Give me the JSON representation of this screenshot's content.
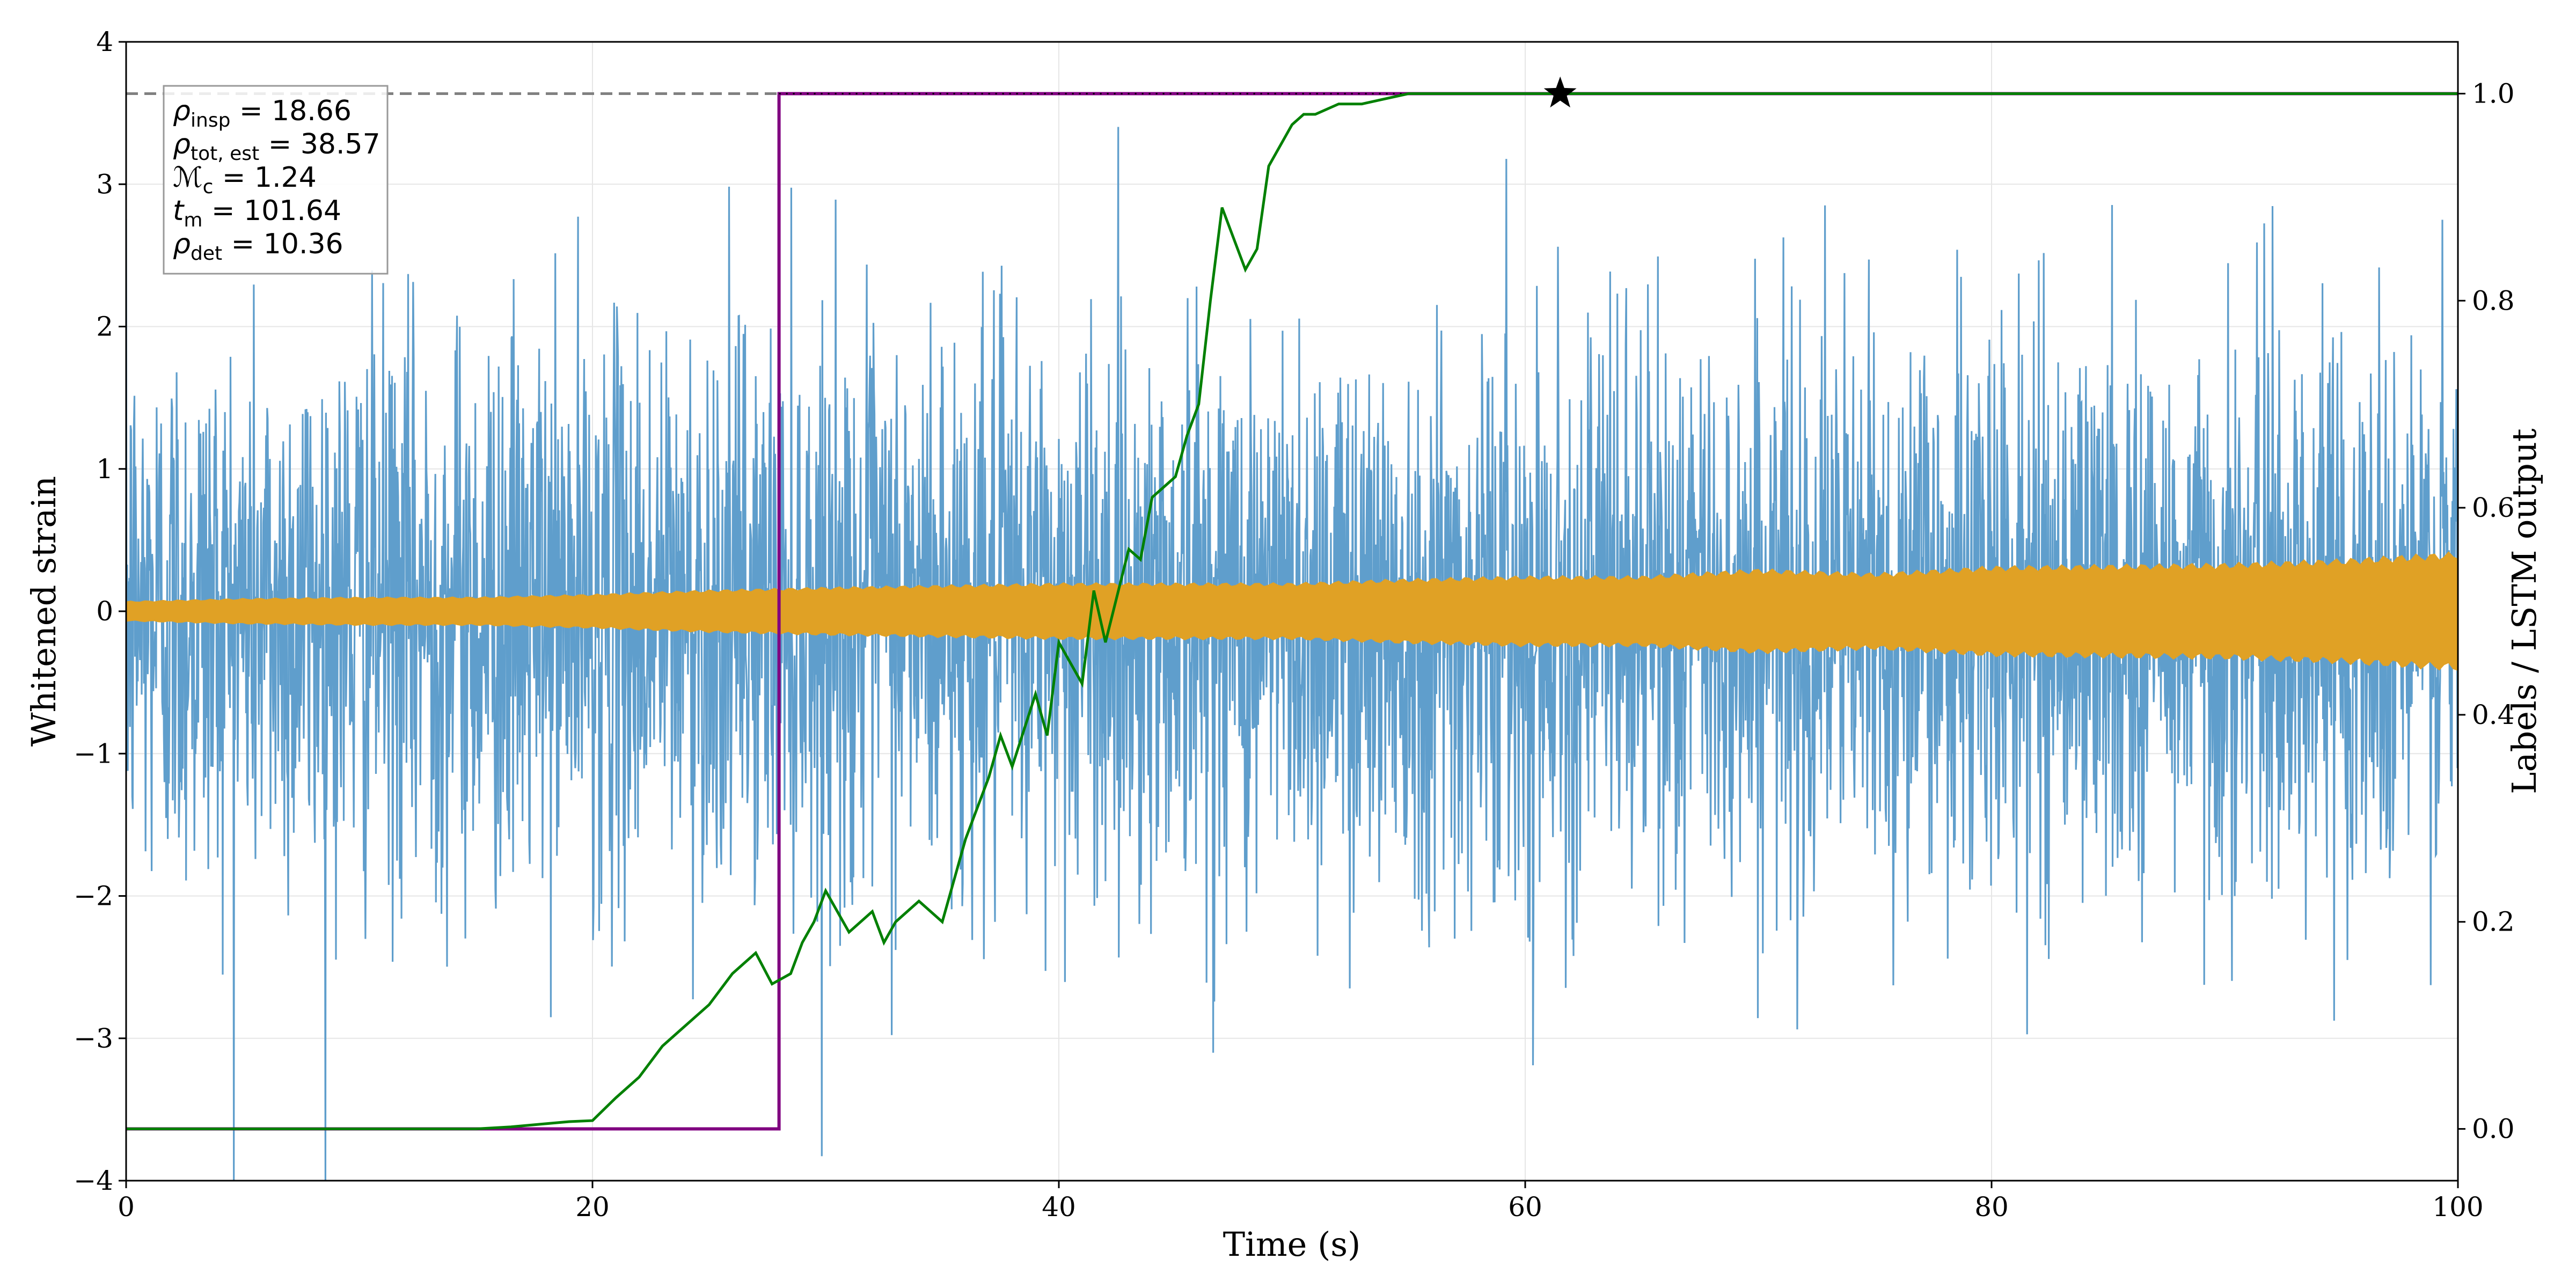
{
  "chart_data": {
    "type": "line",
    "title": "",
    "xlabel": "Time (s)",
    "ylabel": "Whitened strain",
    "ylabel_right": "Labels / LSTM output",
    "xlim": [
      0,
      100
    ],
    "ylim": [
      -4,
      4
    ],
    "ylim_right": [
      -0.05,
      1.05
    ],
    "x_ticks": [
      0,
      20,
      40,
      60,
      80,
      100
    ],
    "y_ticks": [
      -4,
      -3,
      -2,
      -1,
      0,
      1,
      2,
      3,
      4
    ],
    "y_tick_labels": [
      "−4",
      "−3",
      "−2",
      "−1",
      "0",
      "1",
      "2",
      "3",
      "4"
    ],
    "y_right_ticks": [
      0.0,
      0.2,
      0.4,
      0.6,
      0.8,
      1.0
    ],
    "y_right_tick_labels": [
      "0.0",
      "0.2",
      "0.4",
      "0.6",
      "0.8",
      "1.0"
    ],
    "grid": true,
    "series": [
      {
        "kind": "noise_band",
        "axis": "left",
        "color": "#5f9ecc",
        "typical_amplitude": 1.6,
        "max_amplitude": 4.0
      },
      {
        "kind": "chirp_envelope",
        "axis": "left",
        "color": "#e0a125",
        "envelope_x": [
          0,
          5,
          10,
          15,
          20,
          25,
          30,
          40,
          50,
          55,
          60,
          65,
          70,
          75,
          80,
          85,
          90,
          95,
          100
        ],
        "envelope_y": [
          0.07,
          0.09,
          0.1,
          0.1,
          0.12,
          0.15,
          0.17,
          0.2,
          0.2,
          0.23,
          0.25,
          0.25,
          0.3,
          0.27,
          0.32,
          0.33,
          0.34,
          0.37,
          0.42
        ]
      },
      {
        "kind": "label",
        "axis": "right",
        "color": "#800080",
        "x": [
          0,
          28,
          28,
          100
        ],
        "y": [
          0.0,
          0.0,
          1.0,
          1.0
        ]
      },
      {
        "kind": "lstm_output",
        "axis": "right",
        "color": "#008000",
        "x": [
          0,
          5,
          10,
          15,
          16.5,
          18,
          19,
          20,
          21,
          22,
          23,
          24,
          25,
          26,
          27,
          27.7,
          28.5,
          29,
          29.5,
          30,
          31,
          32,
          32.5,
          33,
          34,
          35,
          35.5,
          36,
          37,
          37.5,
          38,
          39,
          39.5,
          40,
          41,
          41.5,
          42,
          43,
          43.5,
          44,
          45,
          45.5,
          46,
          46.5,
          47,
          48,
          48.5,
          49,
          50,
          50.5,
          51,
          52,
          53,
          54,
          55,
          56,
          57,
          58,
          59,
          60,
          61.5,
          70,
          80,
          90,
          100
        ],
        "y": [
          0.0,
          0.0,
          0.0,
          0.0,
          0.002,
          0.005,
          0.007,
          0.008,
          0.03,
          0.05,
          0.08,
          0.1,
          0.12,
          0.15,
          0.17,
          0.14,
          0.15,
          0.18,
          0.2,
          0.23,
          0.19,
          0.21,
          0.18,
          0.2,
          0.22,
          0.2,
          0.24,
          0.28,
          0.34,
          0.38,
          0.35,
          0.42,
          0.38,
          0.47,
          0.43,
          0.52,
          0.47,
          0.56,
          0.55,
          0.61,
          0.63,
          0.67,
          0.7,
          0.8,
          0.89,
          0.83,
          0.85,
          0.93,
          0.97,
          0.98,
          0.98,
          0.99,
          0.99,
          0.995,
          1.0,
          1.0,
          1.0,
          1.0,
          1.0,
          1.0,
          1.0,
          1.0,
          1.0,
          1.0,
          1.0
        ]
      },
      {
        "kind": "threshold",
        "axis": "right",
        "color": "#808080",
        "style": "dashed",
        "y": 1.0
      }
    ],
    "marker": {
      "symbol": "star",
      "x": 61.5,
      "y": 1.0,
      "axis": "right",
      "color": "#000000"
    },
    "annotation": {
      "lines": [
        {
          "base": "ρ",
          "sub": "insp",
          "value": " = 18.66"
        },
        {
          "base": "ρ",
          "sub": "tot, est",
          "value": " = 38.57"
        },
        {
          "base": "ℳ",
          "sub": "c",
          "value": " = 1.24"
        },
        {
          "base": "t",
          "sub": "m",
          "value": " = 101.64"
        },
        {
          "base": "ρ",
          "sub": "det",
          "value": " = 10.36"
        }
      ]
    }
  }
}
